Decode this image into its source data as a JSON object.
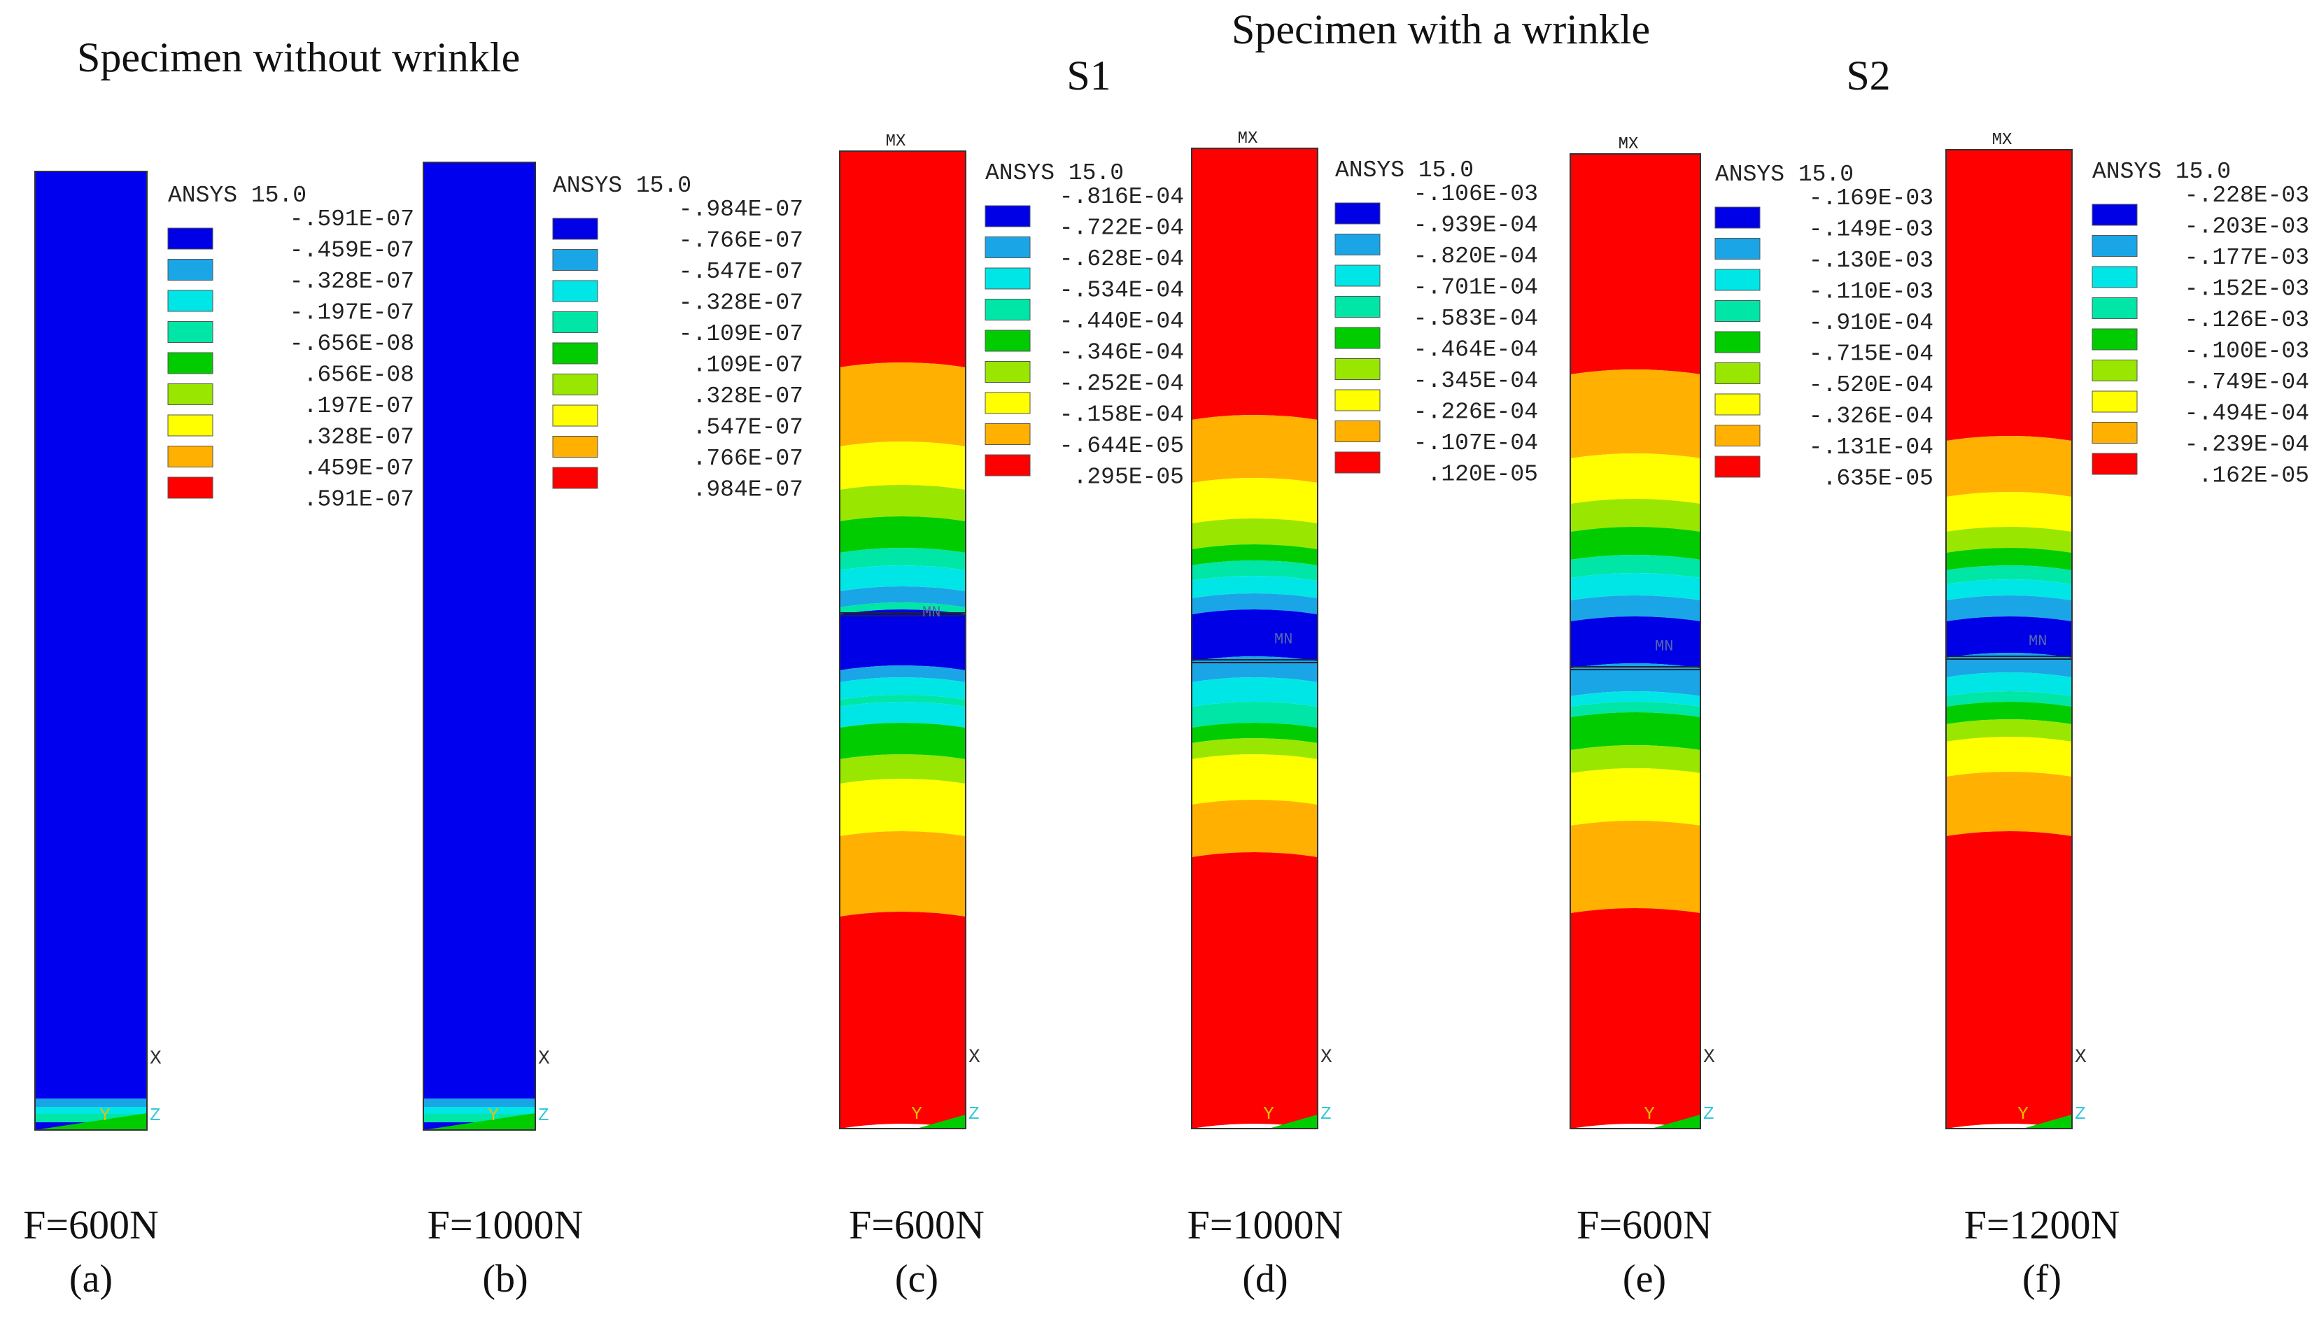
{
  "header": {
    "left_title": "Specimen without wrinkle",
    "right_title": "Specimen with a wrinkle",
    "group_s1": "S1",
    "group_s2": "S2"
  },
  "colors": {
    "bands": [
      "#0000e6",
      "#1aa6e6",
      "#00e6e6",
      "#00e6a6",
      "#00cc00",
      "#99e600",
      "#ffff00",
      "#ffb000",
      "#ff0000"
    ],
    "specimen_plain": "#0000ee",
    "axis_x": "#333333",
    "axis_y": "#e6c000",
    "axis_z": "#35c8d8",
    "legend_text": "#222222"
  },
  "panels": [
    {
      "id": "a",
      "label": "(a)",
      "load": "F=600N",
      "wrinkle": false,
      "software": "ANSYS 15.0",
      "mx_marker": "",
      "legend_values": [
        "-.591E-07",
        "-.459E-07",
        "-.328E-07",
        "-.197E-07",
        "-.656E-08",
        ".656E-08",
        ".197E-07",
        ".328E-07",
        ".459E-07",
        ".591E-07"
      ],
      "axes": {
        "x": "X",
        "y": "Y",
        "z": "Z"
      }
    },
    {
      "id": "b",
      "label": "(b)",
      "load": "F=1000N",
      "wrinkle": false,
      "software": "ANSYS 15.0",
      "mx_marker": "",
      "legend_values": [
        "-.984E-07",
        "-.766E-07",
        "-.547E-07",
        "-.328E-07",
        "-.109E-07",
        ".109E-07",
        ".328E-07",
        ".547E-07",
        ".766E-07",
        ".984E-07"
      ],
      "axes": {
        "x": "X",
        "y": "Y",
        "z": "Z"
      }
    },
    {
      "id": "c",
      "label": "(c)",
      "load": "F=600N",
      "wrinkle": true,
      "group": "S1",
      "software": "ANSYS 15.0",
      "mx_marker": "MX",
      "mn_marker": "MN",
      "legend_values": [
        "-.816E-04",
        "-.722E-04",
        "-.628E-04",
        "-.534E-04",
        "-.440E-04",
        "-.346E-04",
        "-.252E-04",
        "-.158E-04",
        "-.644E-05",
        ".295E-05"
      ],
      "axes": {
        "x": "X",
        "y": "Y",
        "z": "Z"
      }
    },
    {
      "id": "d",
      "label": "(d)",
      "load": "F=1000N",
      "wrinkle": true,
      "group": "S1",
      "software": "ANSYS 15.0",
      "mx_marker": "MX",
      "mn_marker": "MN",
      "legend_values": [
        "-.106E-03",
        "-.939E-04",
        "-.820E-04",
        "-.701E-04",
        "-.583E-04",
        "-.464E-04",
        "-.345E-04",
        "-.226E-04",
        "-.107E-04",
        ".120E-05"
      ],
      "axes": {
        "x": "X",
        "y": "Y",
        "z": "Z"
      }
    },
    {
      "id": "e",
      "label": "(e)",
      "load": "F=600N",
      "wrinkle": true,
      "group": "S2",
      "software": "ANSYS 15.0",
      "mx_marker": "MX",
      "mn_marker": "MN",
      "legend_values": [
        "-.169E-03",
        "-.149E-03",
        "-.130E-03",
        "-.110E-03",
        "-.910E-04",
        "-.715E-04",
        "-.520E-04",
        "-.326E-04",
        "-.131E-04",
        ".635E-05"
      ],
      "axes": {
        "x": "X",
        "y": "Y",
        "z": "Z"
      }
    },
    {
      "id": "f",
      "label": "(f)",
      "load": "F=1200N",
      "wrinkle": true,
      "group": "S2",
      "software": "ANSYS 15.0",
      "mx_marker": "MX",
      "mn_marker": "MN",
      "legend_values": [
        "-.228E-03",
        "-.203E-03",
        "-.177E-03",
        "-.152E-03",
        "-.126E-03",
        "-.100E-03",
        "-.749E-04",
        "-.494E-04",
        "-.239E-04",
        ".162E-05"
      ],
      "axes": {
        "x": "X",
        "y": "Y",
        "z": "Z"
      }
    }
  ]
}
